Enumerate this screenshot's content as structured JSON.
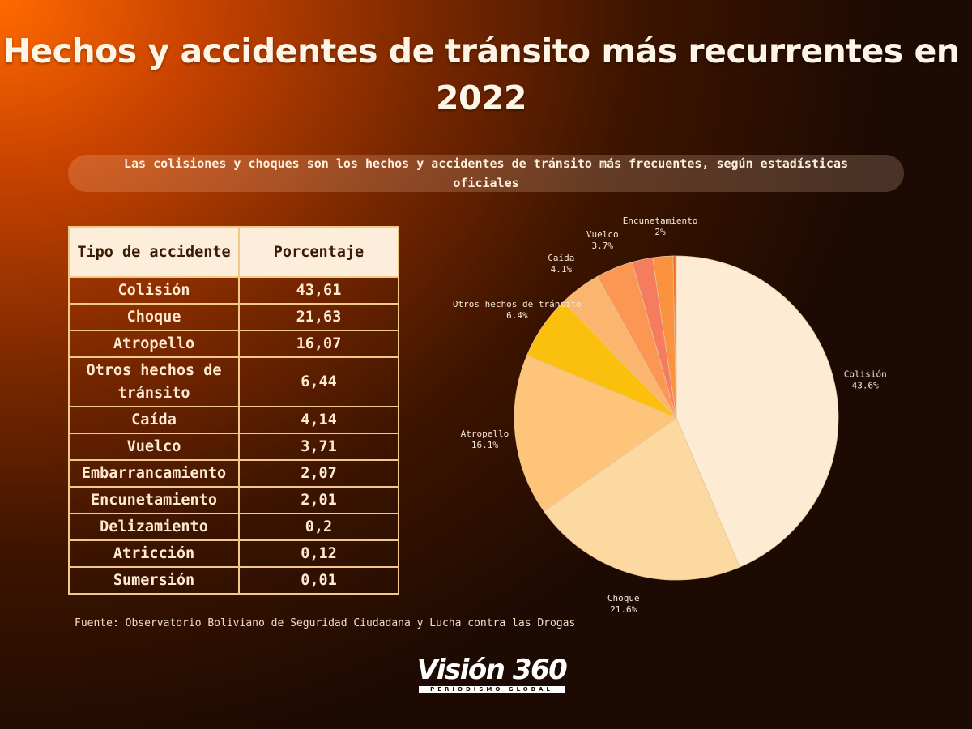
{
  "header": {
    "title": "Hechos y accidentes de tránsito más recurrentes en 2022",
    "subtitle": "Las colisiones y choques son los hechos y accidentes de tránsito más frecuentes, según estadísticas oficiales"
  },
  "table": {
    "col_tipo": "Tipo de accidente",
    "col_porcentaje": "Porcentaje",
    "rows": [
      {
        "tipo": "Colisión",
        "porcentaje": "43,61"
      },
      {
        "tipo": "Choque",
        "porcentaje": "21,63"
      },
      {
        "tipo": "Atropello",
        "porcentaje": "16,07"
      },
      {
        "tipo": "Otros hechos de tránsito",
        "porcentaje": "6,44"
      },
      {
        "tipo": "Caída",
        "porcentaje": "4,14"
      },
      {
        "tipo": "Vuelco",
        "porcentaje": "3,71"
      },
      {
        "tipo": "Embarrancamiento",
        "porcentaje": "2,07"
      },
      {
        "tipo": "Encunetamiento",
        "porcentaje": "2,01"
      },
      {
        "tipo": "Delizamiento",
        "porcentaje": "0,2"
      },
      {
        "tipo": "Atricción",
        "porcentaje": "0,12"
      },
      {
        "tipo": "Sumersión",
        "porcentaje": "0,01"
      }
    ]
  },
  "source": "Fuente: Observatorio Boliviano de Seguridad Ciudadana y Lucha contra las Drogas",
  "logo": {
    "name": "Visión 360",
    "tagline": "PERIODISMO GLOBAL"
  },
  "chart_data": {
    "type": "pie",
    "start_angle": "12 o'clock, clockwise",
    "slices": [
      {
        "label": "Colisión",
        "value": 43.61,
        "pct_label": "43.6%",
        "color": "#fdebd3",
        "show_label": true
      },
      {
        "label": "Choque",
        "value": 21.63,
        "pct_label": "21.6%",
        "color": "#fcd9a0",
        "show_label": true
      },
      {
        "label": "Atropello",
        "value": 16.07,
        "pct_label": "16.1%",
        "color": "#fdc47a",
        "show_label": true
      },
      {
        "label": "Otros hechos de tránsito",
        "value": 6.44,
        "pct_label": "6.4%",
        "color": "#fbbf0e",
        "show_label": true
      },
      {
        "label": "Caída",
        "value": 4.14,
        "pct_label": "4.1%",
        "color": "#fcb56e",
        "show_label": true
      },
      {
        "label": "Vuelco",
        "value": 3.71,
        "pct_label": "3.7%",
        "color": "#fb9653",
        "show_label": true
      },
      {
        "label": "Embarrancamiento",
        "value": 2.07,
        "pct_label": "2.1%",
        "color": "#f57c5e",
        "show_label": false
      },
      {
        "label": "Encunetamiento",
        "value": 2.01,
        "pct_label": "2%",
        "color": "#fb9240",
        "show_label": true
      },
      {
        "label": "Delizamiento",
        "value": 0.2,
        "pct_label": "0.2%",
        "color": "#ee6a1c",
        "show_label": false
      },
      {
        "label": "Atricción",
        "value": 0.12,
        "pct_label": "0.1%",
        "color": "#e85a12",
        "show_label": false
      },
      {
        "label": "Sumersión",
        "value": 0.01,
        "pct_label": "0%",
        "color": "#d84a0a",
        "show_label": false
      }
    ],
    "colors": {
      "slice_border": "#e8c49c",
      "label_text": "#f5e6d8"
    }
  }
}
